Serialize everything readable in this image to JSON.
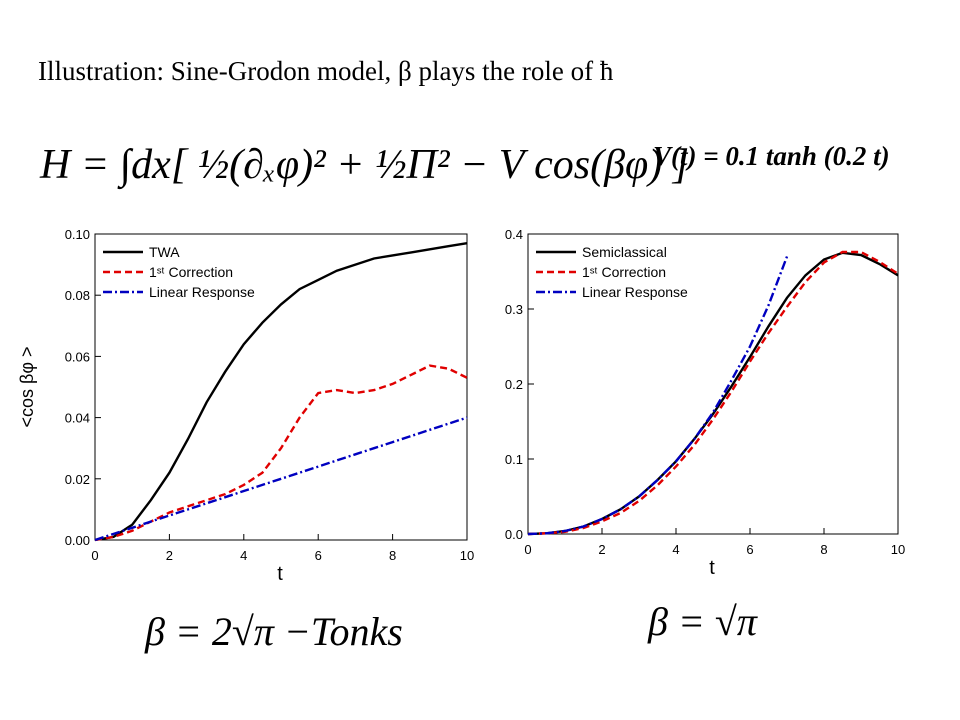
{
  "slide": {
    "title": "Illustration: Sine-Grodon model, β plays the role of ħ",
    "hamiltonian": "H = ∫dx[ ½(∂ₓφ)² + ½Π² − V cos(βφ) ]",
    "potential": "V(t) = 0.1 tanh (0.2 t)",
    "beta_left": "β = 2√π −Tonks",
    "beta_right": "β = √π"
  },
  "chart_data": [
    {
      "type": "line",
      "x_label": "t",
      "y_label": "<cos βφ >",
      "x": [
        0,
        0.5,
        1,
        1.5,
        2,
        2.5,
        3,
        3.5,
        4,
        4.5,
        5,
        5.5,
        6,
        6.5,
        7,
        7.5,
        8,
        8.5,
        9,
        9.5,
        10
      ],
      "xlim": [
        0,
        10
      ],
      "xticks": [
        0,
        2,
        4,
        6,
        8,
        10
      ],
      "ylim": [
        0,
        0.1
      ],
      "yticks": [
        {
          "value": 0,
          "label": "0.00"
        },
        0.02,
        0.04,
        0.06,
        0.08,
        {
          "value": 0.1,
          "label": "0.10"
        }
      ],
      "series": [
        {
          "name": "TWA",
          "color": "#000000",
          "dash": "solid",
          "values": [
            0,
            0.001,
            0.005,
            0.013,
            0.022,
            0.033,
            0.045,
            0.055,
            0.064,
            0.071,
            0.077,
            0.082,
            0.085,
            0.088,
            0.09,
            0.092,
            0.093,
            0.094,
            0.095,
            0.096,
            0.097
          ]
        },
        {
          "name": "1ˢᵗ Correction",
          "color": "#e00000",
          "dash": "dash",
          "values": [
            0,
            0.001,
            0.003,
            0.006,
            0.009,
            0.011,
            0.013,
            0.015,
            0.018,
            0.022,
            0.03,
            0.04,
            0.048,
            0.049,
            0.048,
            0.049,
            0.051,
            0.054,
            0.057,
            0.056,
            0.053
          ]
        },
        {
          "name": "Linear Response",
          "color": "#0000c0",
          "dash": "dashdot",
          "values": [
            0,
            0.002,
            0.004,
            0.006,
            0.008,
            0.01,
            0.012,
            0.014,
            0.016,
            0.018,
            0.02,
            0.022,
            0.024,
            0.026,
            0.028,
            0.03,
            0.032,
            0.034,
            0.036,
            0.038,
            0.04
          ]
        }
      ]
    },
    {
      "type": "line",
      "x_label": "t",
      "x": [
        0,
        0.5,
        1,
        1.5,
        2,
        2.5,
        3,
        3.5,
        4,
        4.5,
        5,
        5.5,
        6,
        6.5,
        7,
        7.5,
        8,
        8.5,
        9,
        9.5,
        10
      ],
      "xlim": [
        0,
        10
      ],
      "xticks": [
        0,
        2,
        4,
        6,
        8,
        10
      ],
      "ylim": [
        0,
        0.4
      ],
      "yticks": [
        {
          "value": 0,
          "label": "0.0"
        },
        0.1,
        0.2,
        0.3,
        0.4
      ],
      "series": [
        {
          "name": "Semiclassical",
          "color": "#000000",
          "dash": "solid",
          "values": [
            0,
            0.001,
            0.004,
            0.01,
            0.02,
            0.033,
            0.05,
            0.072,
            0.097,
            0.127,
            0.16,
            0.197,
            0.236,
            0.277,
            0.315,
            0.345,
            0.366,
            0.375,
            0.372,
            0.36,
            0.345
          ]
        },
        {
          "name": "1ˢᵗ Correction",
          "color": "#e00000",
          "dash": "dash",
          "values": [
            0,
            0.001,
            0.003,
            0.008,
            0.017,
            0.028,
            0.044,
            0.065,
            0.09,
            0.119,
            0.153,
            0.19,
            0.23,
            0.268,
            0.303,
            0.336,
            0.362,
            0.376,
            0.376,
            0.363,
            0.347
          ]
        },
        {
          "name": "Linear Response",
          "color": "#0000c0",
          "dash": "dashdot",
          "values": [
            0,
            0.001,
            0.004,
            0.01,
            0.02,
            0.033,
            0.05,
            0.072,
            0.097,
            0.127,
            0.162,
            0.205,
            0.25,
            0.305,
            0.37,
            null,
            null,
            null,
            null,
            null,
            null
          ]
        }
      ]
    }
  ]
}
